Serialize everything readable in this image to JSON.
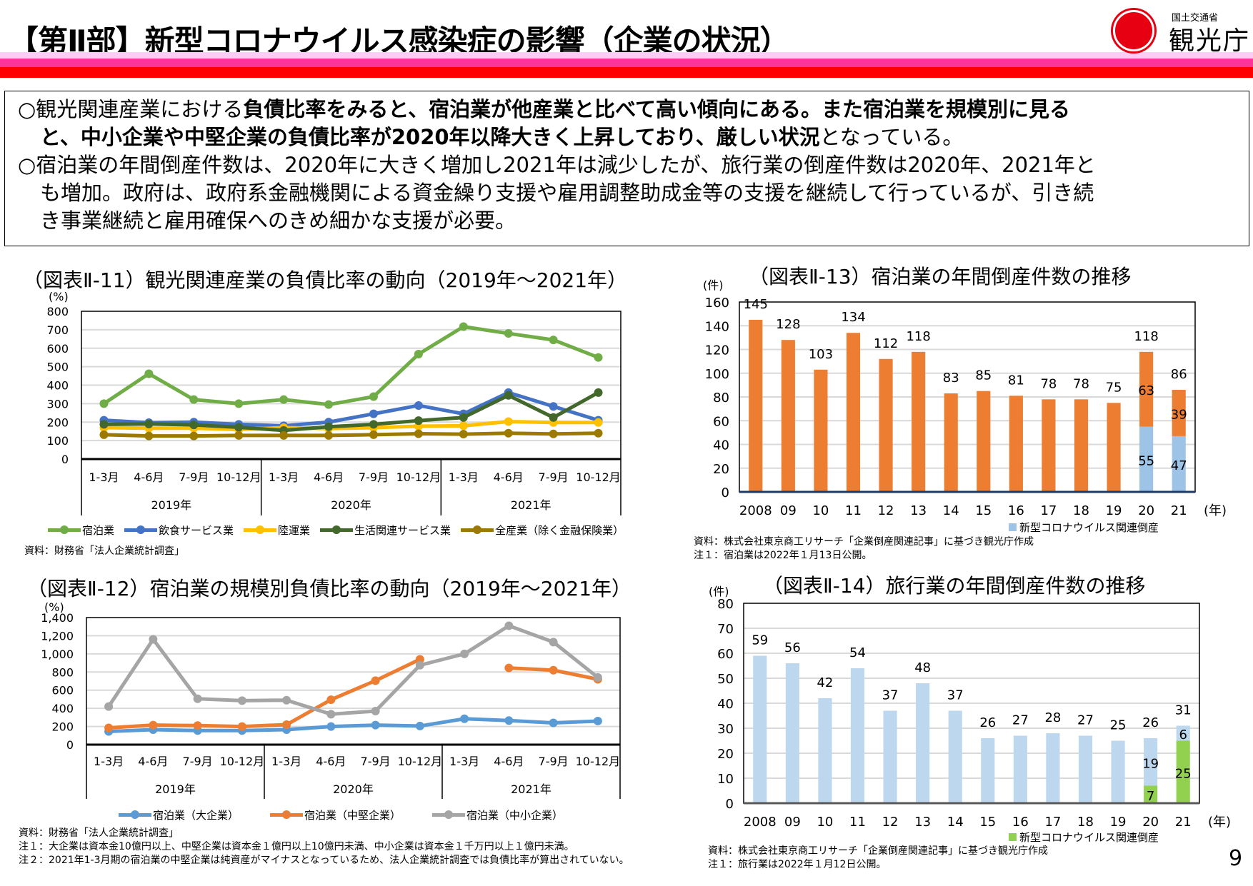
{
  "header": {
    "title": "【第Ⅱ部】新型コロナウイルス感染症の影響（企業の状況）",
    "logo": {
      "ministry": "国土交通省",
      "agency": "観光庁"
    },
    "colors": {
      "pink_band": "#ffccf5",
      "magenta_band": "#ff3399",
      "red_band": "#ff0000",
      "logo_red": "#e60012"
    }
  },
  "summary": {
    "lines": [
      {
        "indent": false,
        "segments": [
          {
            "text": "○観光関連産業における",
            "bold": false
          },
          {
            "text": "負債比率をみると、宿泊業が他産業と比べて高い傾向にある。また宿泊業を規模別に見る",
            "bold": true
          }
        ]
      },
      {
        "indent": true,
        "segments": [
          {
            "text": "と、中小企業や中堅企業の負債比率が2020年以降大きく上昇しており、厳しい状況",
            "bold": true
          },
          {
            "text": "となっている。",
            "bold": false
          }
        ]
      },
      {
        "indent": false,
        "segments": [
          {
            "text": "○宿泊業の年間倒産件数は、2020年に大きく増加し2021年は減少したが、旅行業の倒産件数は2020年、2021年と",
            "bold": false
          }
        ]
      },
      {
        "indent": true,
        "segments": [
          {
            "text": "も増加。政府は、政府系金融機関による資金繰り支援や雇用調整助成金等の支援を継続して行っているが、引き続",
            "bold": false
          }
        ]
      },
      {
        "indent": true,
        "segments": [
          {
            "text": "き事業継続と雇用確保へのきめ細かな支援が必要。",
            "bold": false
          }
        ]
      }
    ]
  },
  "chart_data": [
    {
      "type": "line",
      "title": "（図表Ⅱ-11）観光関連産業の負債比率の動向（2019年～2021年）",
      "ylabel": "(%)",
      "ylim": [
        0,
        800
      ],
      "ytick_labels": [
        "0",
        "100",
        "200",
        "300",
        "400",
        "500",
        "600",
        "700",
        "800"
      ],
      "categories": [
        "1-3月",
        "4-6月",
        "7-9月",
        "10-12月",
        "1-3月",
        "4-6月",
        "7-9月",
        "10-12月",
        "1-3月",
        "4-6月",
        "7-9月",
        "10-12月"
      ],
      "groups": [
        "2019年",
        "2020年",
        "2021年"
      ],
      "grid": true,
      "legend": "bottom",
      "series": [
        {
          "name": "宿泊業",
          "color": "#70ad47",
          "values": [
            300,
            462,
            322,
            300,
            322,
            295,
            338,
            568,
            717,
            680,
            645,
            550
          ]
        },
        {
          "name": "飲食サービス業",
          "color": "#4472c4",
          "values": [
            210,
            197,
            200,
            188,
            180,
            200,
            245,
            290,
            245,
            360,
            285,
            210
          ]
        },
        {
          "name": "陸運業",
          "color": "#ffc000",
          "values": [
            170,
            167,
            167,
            160,
            170,
            165,
            170,
            178,
            180,
            203,
            198,
            198
          ]
        },
        {
          "name": "生活関連サービス業",
          "color": "#43682b",
          "values": [
            188,
            190,
            185,
            172,
            155,
            175,
            188,
            208,
            225,
            345,
            225,
            360
          ]
        },
        {
          "name": "全産業（除く金融保険業）",
          "color": "#9c7a00",
          "values": [
            132,
            125,
            125,
            128,
            128,
            128,
            132,
            137,
            135,
            140,
            136,
            140
          ]
        }
      ],
      "notes": [
        "資料：財務省「法人企業統計調査」"
      ]
    },
    {
      "type": "line",
      "title": "（図表Ⅱ-12）宿泊業の規模別負債比率の動向（2019年～2021年）",
      "ylabel": "(%)",
      "ylim": [
        0,
        1400
      ],
      "ytick_labels": [
        "0",
        "200",
        "400",
        "600",
        "800",
        "1,000",
        "1,200",
        "1,400"
      ],
      "categories": [
        "1-3月",
        "4-6月",
        "7-9月",
        "10-12月",
        "1-3月",
        "4-6月",
        "7-9月",
        "10-12月",
        "1-3月",
        "4-6月",
        "7-9月",
        "10-12月"
      ],
      "groups": [
        "2019年",
        "2020年",
        "2021年"
      ],
      "grid": true,
      "legend": "bottom",
      "series": [
        {
          "name": "宿泊業（大企業）",
          "color": "#5b9bd5",
          "values": [
            145,
            165,
            155,
            155,
            165,
            200,
            215,
            205,
            285,
            265,
            240,
            260
          ]
        },
        {
          "name": "宿泊業（中堅企業）",
          "color": "#ed7d31",
          "values": [
            185,
            215,
            210,
            200,
            220,
            495,
            705,
            940,
            null,
            845,
            820,
            720
          ]
        },
        {
          "name": "宿泊業（中小企業）",
          "color": "#a5a5a5",
          "values": [
            420,
            1160,
            505,
            485,
            490,
            335,
            370,
            875,
            1000,
            1310,
            1130,
            740
          ]
        }
      ],
      "notes": [
        "資料：財務省「法人企業統計調査」",
        "注１：大企業は資本金10億円以上、中堅企業は資本金１億円以上10億円未満、中小企業は資本金１千万円以上１億円未満。",
        "注２：2021年1-3月期の宿泊業の中堅企業は純資産がマイナスとなっているため、法人企業統計調査では負債比率が算出されていない。"
      ]
    },
    {
      "type": "bar",
      "title": "（図表Ⅱ-13）宿泊業の年間倒産件数の推移",
      "ylabel": "(件)",
      "xlabel": "(年)",
      "ylim": [
        0,
        160
      ],
      "ytick_labels": [
        "0",
        "20",
        "40",
        "60",
        "80",
        "100",
        "120",
        "140",
        "160"
      ],
      "categories": [
        "2008",
        "09",
        "10",
        "11",
        "12",
        "13",
        "14",
        "15",
        "16",
        "17",
        "18",
        "19",
        "20",
        "21"
      ],
      "totals": [
        145,
        128,
        103,
        134,
        112,
        118,
        83,
        85,
        81,
        78,
        78,
        75,
        118,
        86
      ],
      "series": [
        {
          "name": "新型コロナウイルス関連倒産",
          "color": "#9dc3e6",
          "values": [
            0,
            0,
            0,
            0,
            0,
            0,
            0,
            0,
            0,
            0,
            0,
            0,
            55,
            47
          ]
        },
        {
          "name": "",
          "color": "#ed7d31",
          "values": [
            145,
            128,
            103,
            134,
            112,
            118,
            83,
            85,
            81,
            78,
            78,
            75,
            63,
            39
          ]
        }
      ],
      "grid": true,
      "legend": "bottom-right",
      "notes": [
        "資料：株式会社東京商工リサーチ「企業倒産関連記事」に基づき観光庁作成",
        "注１：宿泊業は2022年１月13日公開。"
      ]
    },
    {
      "type": "bar",
      "title": "（図表Ⅱ-14）旅行業の年間倒産件数の推移",
      "ylabel": "(件)",
      "xlabel": "(年)",
      "ylim": [
        0,
        80
      ],
      "ytick_labels": [
        "0",
        "10",
        "20",
        "30",
        "40",
        "50",
        "60",
        "70",
        "80"
      ],
      "categories": [
        "2008",
        "09",
        "10",
        "11",
        "12",
        "13",
        "14",
        "15",
        "16",
        "17",
        "18",
        "19",
        "20",
        "21"
      ],
      "totals": [
        59,
        56,
        42,
        54,
        37,
        48,
        37,
        26,
        27,
        28,
        27,
        25,
        26,
        31
      ],
      "series": [
        {
          "name": "新型コロナウイルス関連倒産",
          "color": "#92d050",
          "values": [
            0,
            0,
            0,
            0,
            0,
            0,
            0,
            0,
            0,
            0,
            0,
            0,
            7,
            25
          ]
        },
        {
          "name": "",
          "color": "#bdd7ee",
          "values": [
            59,
            56,
            42,
            54,
            37,
            48,
            37,
            26,
            27,
            28,
            27,
            25,
            19,
            6
          ]
        }
      ],
      "grid": true,
      "legend": "bottom-right",
      "notes": [
        "資料：株式会社東京商工リサーチ「企業倒産関連記事」に基づき観光庁作成",
        "注１：旅行業は2022年１月12日公開。"
      ]
    }
  ],
  "page_number": "9"
}
